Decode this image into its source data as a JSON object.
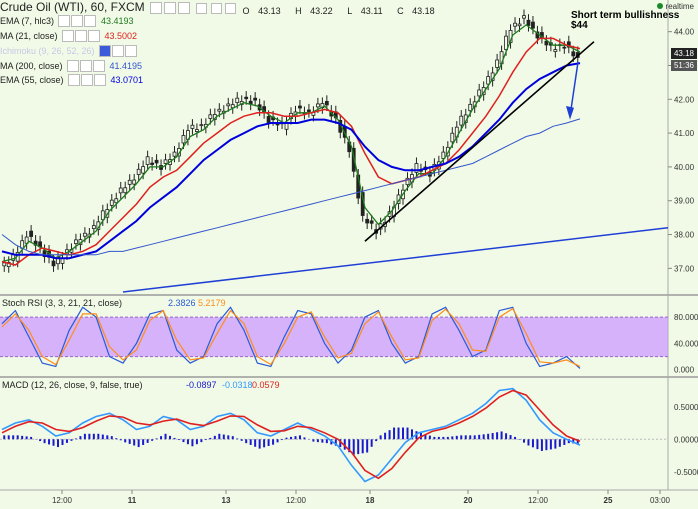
{
  "header": {
    "title": "Crude Oil (WTI), 60, FXCM",
    "ohlc": [
      {
        "label": "O",
        "value": "43.13"
      },
      {
        "label": "H",
        "value": "43.22"
      },
      {
        "label": "L",
        "value": "43.11"
      },
      {
        "label": "C",
        "value": "43.18"
      }
    ],
    "realtime": "realtime"
  },
  "indicators": [
    {
      "label": "EMA (7, hlc3)",
      "value": "43.4193",
      "color": "#1e7a1e"
    },
    {
      "label": "MA (21, close)",
      "value": "43.5002",
      "color": "#e02020"
    },
    {
      "label": "Ichimoku (9, 26, 52, 26)",
      "value": "",
      "color": "#c0c0e0"
    },
    {
      "label": "MA (200, close)",
      "value": "41.4195",
      "color": "#3355cc"
    },
    {
      "label": "EMA (55, close)",
      "value": "43.0701",
      "color": "#0000dd"
    }
  ],
  "annotation": {
    "line1": "Short term bullishness",
    "line2": "$44"
  },
  "price_tags": [
    {
      "text": "43.18",
      "bg": "#222222"
    },
    {
      "text": "51:36",
      "bg": "#555555"
    }
  ],
  "chart_data": [
    {
      "type": "candlestick",
      "title": "Crude Oil (WTI), 60, FXCM",
      "y_ticks": [
        "44.00",
        "43.00",
        "42.00",
        "41.00",
        "40.00",
        "39.00",
        "38.00",
        "37.00"
      ],
      "ylim": [
        36.3,
        44.7
      ],
      "x_ticks": [
        "12:00",
        "11",
        "13",
        "12:00",
        "18",
        "20",
        "12:00",
        "25",
        "03:00"
      ],
      "close_path": [
        37.0,
        37.3,
        38.0,
        37.6,
        37.1,
        37.5,
        37.9,
        38.2,
        38.8,
        39.3,
        39.7,
        40.2,
        40.0,
        40.4,
        41.1,
        41.2,
        41.6,
        41.8,
        42.0,
        41.9,
        41.4,
        41.2,
        41.7,
        41.6,
        41.9,
        41.4,
        40.5,
        38.5,
        38.1,
        38.6,
        39.4,
        40.0,
        39.8,
        40.4,
        41.2,
        41.8,
        42.4,
        43.1,
        44.1,
        44.4,
        43.9,
        43.5,
        43.6,
        43.2
      ],
      "series": [
        {
          "name": "EMA (7, hlc3)",
          "values": [
            37.2,
            37.3,
            37.8,
            37.6,
            37.3,
            37.5,
            37.8,
            38.1,
            38.7,
            39.1,
            39.5,
            40.0,
            40.0,
            40.3,
            40.9,
            41.1,
            41.5,
            41.7,
            41.9,
            41.8,
            41.5,
            41.3,
            41.6,
            41.6,
            41.8,
            41.4,
            40.6,
            38.8,
            38.3,
            38.7,
            39.3,
            39.8,
            39.8,
            40.3,
            41.0,
            41.7,
            42.3,
            42.9,
            43.9,
            44.2,
            43.9,
            43.6,
            43.6,
            43.4
          ]
        },
        {
          "name": "MA (21, close)",
          "values": [
            37.2,
            37.1,
            37.4,
            37.6,
            37.5,
            37.4,
            37.5,
            37.7,
            38.1,
            38.5,
            38.9,
            39.4,
            39.7,
            39.9,
            40.3,
            40.7,
            41.0,
            41.3,
            41.5,
            41.6,
            41.6,
            41.5,
            41.5,
            41.6,
            41.7,
            41.6,
            41.2,
            40.4,
            39.7,
            39.5,
            39.6,
            39.7,
            39.9,
            40.1,
            40.5,
            41.0,
            41.5,
            42.1,
            42.8,
            43.4,
            43.8,
            43.8,
            43.6,
            43.5
          ]
        },
        {
          "name": "EMA (55, close)",
          "values": [
            37.5,
            37.4,
            37.4,
            37.4,
            37.3,
            37.3,
            37.4,
            37.5,
            37.8,
            38.1,
            38.4,
            38.8,
            39.1,
            39.4,
            39.8,
            40.2,
            40.5,
            40.8,
            41.0,
            41.2,
            41.3,
            41.3,
            41.3,
            41.4,
            41.4,
            41.3,
            41.1,
            40.6,
            40.2,
            40.0,
            39.9,
            39.9,
            40.0,
            40.1,
            40.3,
            40.6,
            41.0,
            41.4,
            41.9,
            42.3,
            42.6,
            42.8,
            43.0,
            43.07
          ]
        },
        {
          "name": "MA (200, close)",
          "values": [
            38.0,
            37.7,
            37.5,
            37.4,
            37.4,
            37.4,
            37.4,
            37.4,
            37.5,
            37.5,
            37.6,
            37.7,
            37.8,
            37.9,
            38.0,
            38.1,
            38.2,
            38.3,
            38.4,
            38.5,
            38.6,
            38.7,
            38.8,
            38.9,
            39.0,
            39.1,
            39.2,
            39.3,
            39.4,
            39.5,
            39.6,
            39.7,
            39.8,
            39.9,
            40.0,
            40.1,
            40.3,
            40.5,
            40.7,
            40.9,
            41.0,
            41.2,
            41.3,
            41.42
          ]
        }
      ]
    },
    {
      "type": "line",
      "title": "Stoch RSI (3, 3, 21, 21, close)",
      "values_shown": [
        "2.3826",
        "5.2179"
      ],
      "y_ticks": [
        "80.000",
        "40.000",
        "0.000"
      ],
      "ylim": [
        -5,
        100
      ],
      "band": [
        20,
        80
      ],
      "series": [
        {
          "name": "K",
          "values": [
            70,
            90,
            50,
            10,
            5,
            60,
            95,
            80,
            20,
            10,
            40,
            85,
            90,
            30,
            10,
            20,
            70,
            95,
            60,
            10,
            5,
            50,
            90,
            85,
            40,
            10,
            30,
            80,
            90,
            40,
            10,
            20,
            85,
            95,
            60,
            20,
            30,
            90,
            95,
            40,
            5,
            10,
            20,
            2
          ]
        },
        {
          "name": "D",
          "values": [
            65,
            85,
            60,
            20,
            8,
            45,
            85,
            85,
            35,
            15,
            30,
            75,
            90,
            45,
            15,
            18,
            55,
            90,
            70,
            20,
            8,
            40,
            80,
            88,
            50,
            18,
            25,
            70,
            88,
            50,
            15,
            18,
            75,
            92,
            70,
            30,
            28,
            80,
            93,
            55,
            12,
            10,
            15,
            5
          ]
        }
      ]
    },
    {
      "type": "bar+line",
      "title": "MACD (12, 26, close, 9, false, true)",
      "values_shown": [
        "-0.0897",
        "-0.0318",
        "0.0579"
      ],
      "y_ticks": [
        "0.5000",
        "0.0000",
        "-0.5000"
      ],
      "ylim": [
        -0.75,
        0.85
      ],
      "series": [
        {
          "name": "MACD",
          "values": [
            0.15,
            0.25,
            0.3,
            0.2,
            0.05,
            0.1,
            0.25,
            0.35,
            0.4,
            0.3,
            0.15,
            0.2,
            0.35,
            0.3,
            0.15,
            0.2,
            0.35,
            0.4,
            0.3,
            0.1,
            0.05,
            0.15,
            0.25,
            0.15,
            0.05,
            -0.1,
            -0.4,
            -0.65,
            -0.55,
            -0.3,
            -0.05,
            0.1,
            0.15,
            0.2,
            0.3,
            0.4,
            0.55,
            0.75,
            0.78,
            0.6,
            0.3,
            0.1,
            0.0,
            -0.09
          ]
        },
        {
          "name": "Signal",
          "values": [
            0.1,
            0.2,
            0.27,
            0.25,
            0.15,
            0.12,
            0.18,
            0.28,
            0.36,
            0.34,
            0.25,
            0.22,
            0.28,
            0.31,
            0.24,
            0.21,
            0.28,
            0.36,
            0.35,
            0.22,
            0.12,
            0.13,
            0.2,
            0.18,
            0.1,
            0.0,
            -0.2,
            -0.48,
            -0.6,
            -0.45,
            -0.2,
            0.02,
            0.12,
            0.17,
            0.25,
            0.35,
            0.48,
            0.65,
            0.75,
            0.68,
            0.45,
            0.22,
            0.05,
            -0.03
          ]
        }
      ]
    }
  ]
}
